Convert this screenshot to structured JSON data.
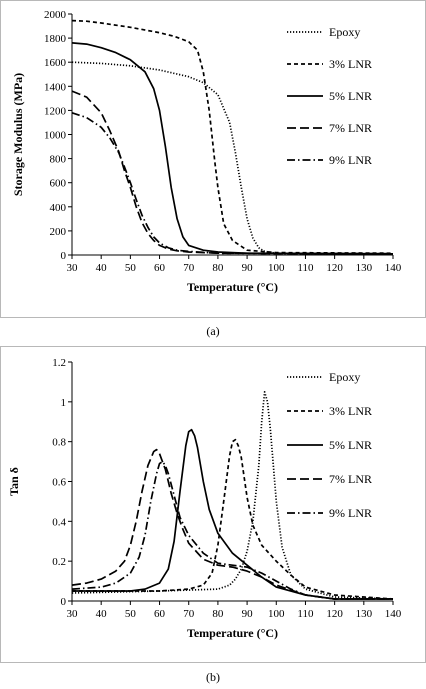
{
  "chart_data": [
    {
      "type": "line",
      "panel_label": "(a)",
      "xlabel": "Temperature (°C)",
      "ylabel": "Storage Modulus (MPa)",
      "xlim": [
        30,
        140
      ],
      "ylim": [
        0,
        2000
      ],
      "xticks": [
        "30",
        "40",
        "50",
        "60",
        "70",
        "80",
        "90",
        "100",
        "110",
        "120",
        "130",
        "140"
      ],
      "yticks": [
        "0",
        "200",
        "400",
        "600",
        "800",
        "1000",
        "1200",
        "1400",
        "1600",
        "1800",
        "2000"
      ],
      "grid": false,
      "legend_position": "right",
      "series": [
        {
          "name": "Epoxy",
          "dash": "dotted",
          "x": [
            30,
            40,
            50,
            60,
            70,
            75,
            80,
            84,
            86,
            88,
            90,
            92,
            94,
            96,
            100,
            110,
            140
          ],
          "y": [
            1600,
            1590,
            1570,
            1535,
            1480,
            1430,
            1330,
            1100,
            850,
            560,
            300,
            140,
            60,
            30,
            15,
            10,
            10
          ]
        },
        {
          "name": "3% LNR",
          "dash": "dashed",
          "x": [
            30,
            35,
            40,
            50,
            60,
            65,
            70,
            73,
            75,
            77,
            79,
            80,
            82,
            85,
            90,
            100,
            140
          ],
          "y": [
            1945,
            1940,
            1925,
            1890,
            1845,
            1815,
            1770,
            1700,
            1520,
            1200,
            760,
            560,
            260,
            120,
            40,
            20,
            15
          ]
        },
        {
          "name": "5% LNR",
          "dash": "solid",
          "x": [
            30,
            35,
            40,
            45,
            50,
            55,
            58,
            60,
            62,
            64,
            66,
            68,
            70,
            75,
            80,
            90,
            140
          ],
          "y": [
            1760,
            1750,
            1720,
            1680,
            1620,
            1520,
            1380,
            1200,
            900,
            560,
            300,
            150,
            80,
            40,
            25,
            15,
            10
          ]
        },
        {
          "name": "7% LNR",
          "dash": "longdash",
          "x": [
            30,
            35,
            40,
            43,
            46,
            48,
            50,
            52,
            54,
            56,
            58,
            60,
            63,
            66,
            70,
            80,
            140
          ],
          "y": [
            1360,
            1310,
            1180,
            1030,
            860,
            700,
            560,
            400,
            270,
            180,
            120,
            80,
            50,
            35,
            25,
            15,
            10
          ]
        },
        {
          "name": "9% LNR",
          "dash": "dashdot",
          "x": [
            30,
            35,
            40,
            43,
            46,
            48,
            50,
            52,
            54,
            56,
            58,
            60,
            63,
            66,
            70,
            80,
            140
          ],
          "y": [
            1180,
            1140,
            1060,
            970,
            850,
            730,
            600,
            460,
            330,
            230,
            150,
            100,
            60,
            40,
            30,
            15,
            10
          ]
        }
      ]
    },
    {
      "type": "line",
      "panel_label": "(b)",
      "xlabel": "Temperature (°C)",
      "ylabel": "Tan δ",
      "xlim": [
        30,
        140
      ],
      "ylim": [
        0,
        1.2
      ],
      "xticks": [
        "30",
        "40",
        "50",
        "60",
        "70",
        "80",
        "90",
        "100",
        "110",
        "120",
        "130",
        "140"
      ],
      "yticks": [
        "0",
        "0.2",
        "0.4",
        "0.6",
        "0.8",
        "1",
        "1.2"
      ],
      "grid": false,
      "legend_position": "right",
      "series": [
        {
          "name": "Epoxy",
          "dash": "dotted",
          "x": [
            30,
            60,
            80,
            84,
            86,
            88,
            90,
            92,
            94,
            95,
            96,
            97,
            98,
            100,
            102,
            105,
            110,
            120,
            140
          ],
          "y": [
            0.04,
            0.05,
            0.06,
            0.08,
            0.11,
            0.16,
            0.25,
            0.4,
            0.68,
            0.9,
            1.05,
            1.0,
            0.86,
            0.5,
            0.27,
            0.13,
            0.06,
            0.02,
            0.01
          ]
        },
        {
          "name": "3% LNR",
          "dash": "dashed",
          "x": [
            30,
            50,
            60,
            70,
            75,
            78,
            80,
            82,
            84,
            85,
            86,
            87,
            88,
            90,
            92,
            95,
            100,
            105,
            110,
            120,
            140
          ],
          "y": [
            0.05,
            0.05,
            0.05,
            0.06,
            0.08,
            0.14,
            0.28,
            0.5,
            0.73,
            0.8,
            0.81,
            0.78,
            0.72,
            0.52,
            0.38,
            0.28,
            0.2,
            0.13,
            0.07,
            0.03,
            0.01
          ]
        },
        {
          "name": "5% LNR",
          "dash": "solid",
          "x": [
            30,
            50,
            55,
            60,
            63,
            65,
            67,
            69,
            70,
            71,
            72,
            73,
            75,
            77,
            80,
            85,
            90,
            95,
            100,
            110,
            120,
            140
          ],
          "y": [
            0.05,
            0.05,
            0.06,
            0.09,
            0.16,
            0.3,
            0.55,
            0.78,
            0.85,
            0.86,
            0.83,
            0.77,
            0.6,
            0.46,
            0.34,
            0.24,
            0.18,
            0.12,
            0.07,
            0.03,
            0.01,
            0.01
          ]
        },
        {
          "name": "7% LNR",
          "dash": "longdash",
          "x": [
            30,
            35,
            40,
            45,
            48,
            50,
            52,
            54,
            56,
            58,
            59,
            60,
            62,
            64,
            66,
            68,
            70,
            75,
            80,
            85,
            90,
            95,
            100,
            110,
            120,
            140
          ],
          "y": [
            0.08,
            0.09,
            0.11,
            0.15,
            0.2,
            0.28,
            0.4,
            0.55,
            0.68,
            0.75,
            0.76,
            0.74,
            0.66,
            0.54,
            0.44,
            0.36,
            0.29,
            0.21,
            0.18,
            0.17,
            0.15,
            0.12,
            0.08,
            0.03,
            0.01,
            0.01
          ]
        },
        {
          "name": "9% LNR",
          "dash": "dashdot",
          "x": [
            30,
            40,
            45,
            50,
            53,
            55,
            57,
            59,
            60,
            61,
            62,
            63,
            65,
            67,
            70,
            75,
            80,
            85,
            90,
            95,
            100,
            105,
            110,
            120,
            140
          ],
          "y": [
            0.06,
            0.07,
            0.09,
            0.14,
            0.22,
            0.33,
            0.5,
            0.64,
            0.69,
            0.7,
            0.68,
            0.64,
            0.53,
            0.42,
            0.33,
            0.24,
            0.19,
            0.18,
            0.17,
            0.14,
            0.1,
            0.06,
            0.03,
            0.01,
            0.01
          ]
        }
      ]
    }
  ]
}
